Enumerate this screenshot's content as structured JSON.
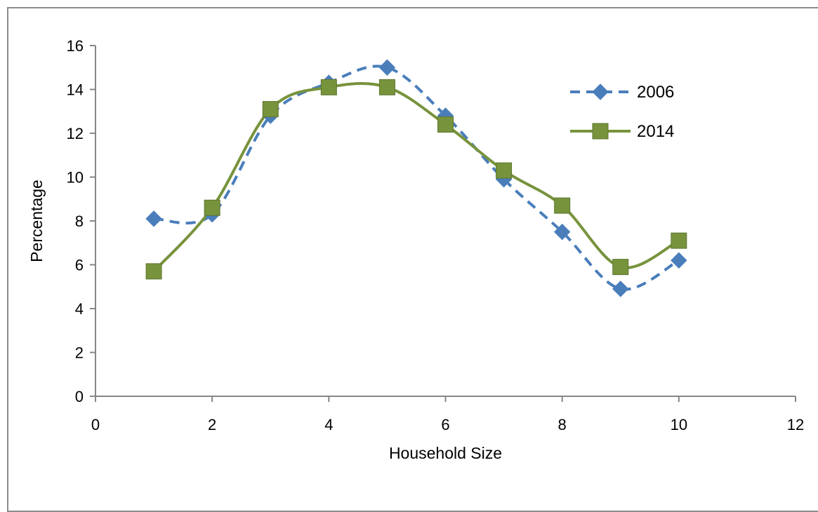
{
  "chart_data": {
    "type": "line",
    "title": "",
    "xlabel": "Household Size",
    "ylabel": "Percentage",
    "xlim": [
      0,
      12
    ],
    "ylim": [
      0,
      16
    ],
    "x_ticks": [
      0,
      2,
      4,
      6,
      8,
      10,
      12
    ],
    "y_ticks": [
      0,
      2,
      4,
      6,
      8,
      10,
      12,
      14,
      16
    ],
    "grid": false,
    "legend_position": "top-right",
    "smooth": true,
    "series": [
      {
        "name": "2006",
        "color": "#4a7ebb",
        "line_style": "dashed",
        "marker": "diamond",
        "x": [
          1,
          2,
          3,
          4,
          5,
          6,
          7,
          8,
          9,
          10
        ],
        "y": [
          8.1,
          8.3,
          12.8,
          14.3,
          15.0,
          12.8,
          9.9,
          7.5,
          4.9,
          6.2
        ]
      },
      {
        "name": "2014",
        "color": "#77933c",
        "line_style": "solid",
        "marker": "square",
        "x": [
          1,
          2,
          3,
          4,
          5,
          6,
          7,
          8,
          9,
          10
        ],
        "y": [
          5.7,
          8.6,
          13.1,
          14.1,
          14.1,
          12.4,
          10.3,
          8.7,
          5.9,
          7.1
        ]
      }
    ]
  }
}
